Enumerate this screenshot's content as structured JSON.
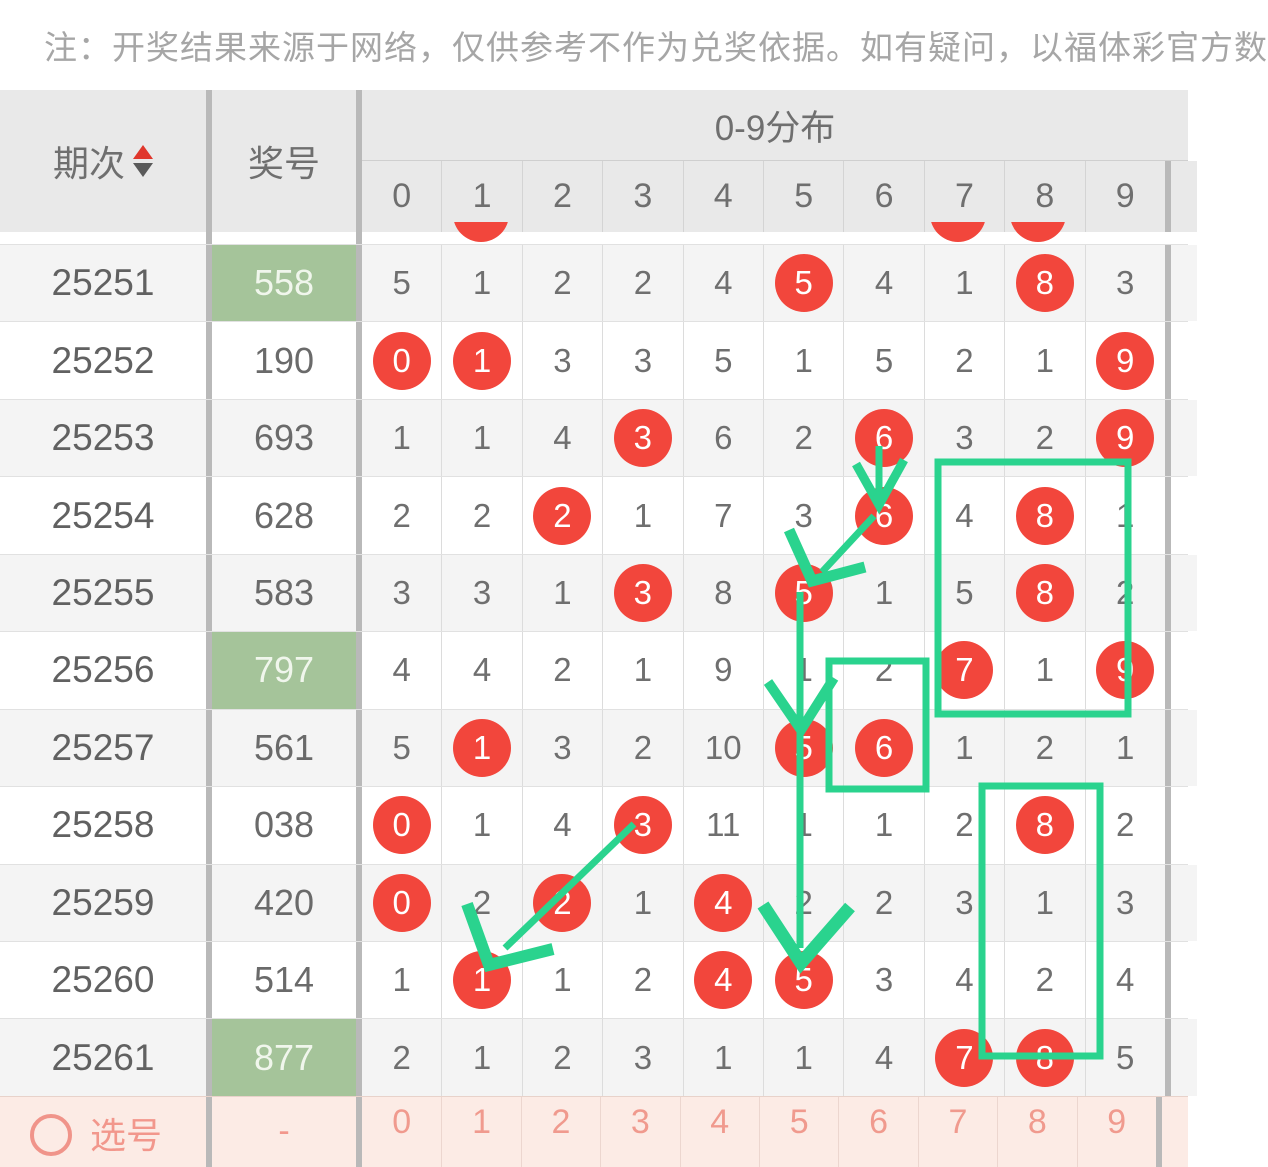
{
  "disclaimer": "注：开奖结果来源于网络，仅供参考不作为兑奖依据。如有疑问，以福体彩官方数",
  "header": {
    "period_label": "期次",
    "number_label": "奖号",
    "distribution_label": "0-9分布",
    "digits": [
      "0",
      "1",
      "2",
      "3",
      "4",
      "5",
      "6",
      "7",
      "8",
      "9"
    ]
  },
  "partial_top_row": {
    "circled_columns": [
      1,
      7,
      8
    ]
  },
  "rows": [
    {
      "period": "25251",
      "number": "558",
      "number_highlighted": true,
      "cells": [
        {
          "v": "5"
        },
        {
          "v": "1"
        },
        {
          "v": "2"
        },
        {
          "v": "2"
        },
        {
          "v": "4"
        },
        {
          "v": "5",
          "circled": true
        },
        {
          "v": "4"
        },
        {
          "v": "1"
        },
        {
          "v": "8",
          "circled": true
        },
        {
          "v": "3"
        }
      ]
    },
    {
      "period": "25252",
      "number": "190",
      "number_highlighted": false,
      "cells": [
        {
          "v": "0",
          "circled": true
        },
        {
          "v": "1",
          "circled": true
        },
        {
          "v": "3"
        },
        {
          "v": "3"
        },
        {
          "v": "5"
        },
        {
          "v": "1"
        },
        {
          "v": "5"
        },
        {
          "v": "2"
        },
        {
          "v": "1"
        },
        {
          "v": "9",
          "circled": true
        }
      ]
    },
    {
      "period": "25253",
      "number": "693",
      "number_highlighted": false,
      "cells": [
        {
          "v": "1"
        },
        {
          "v": "1"
        },
        {
          "v": "4"
        },
        {
          "v": "3",
          "circled": true
        },
        {
          "v": "6"
        },
        {
          "v": "2"
        },
        {
          "v": "6",
          "circled": true
        },
        {
          "v": "3"
        },
        {
          "v": "2"
        },
        {
          "v": "9",
          "circled": true
        }
      ]
    },
    {
      "period": "25254",
      "number": "628",
      "number_highlighted": false,
      "cells": [
        {
          "v": "2"
        },
        {
          "v": "2"
        },
        {
          "v": "2",
          "circled": true
        },
        {
          "v": "1"
        },
        {
          "v": "7"
        },
        {
          "v": "3"
        },
        {
          "v": "6",
          "circled": true
        },
        {
          "v": "4"
        },
        {
          "v": "8",
          "circled": true
        },
        {
          "v": "1"
        }
      ]
    },
    {
      "period": "25255",
      "number": "583",
      "number_highlighted": false,
      "cells": [
        {
          "v": "3"
        },
        {
          "v": "3"
        },
        {
          "v": "1"
        },
        {
          "v": "3",
          "circled": true
        },
        {
          "v": "8"
        },
        {
          "v": "5",
          "circled": true
        },
        {
          "v": "1"
        },
        {
          "v": "5"
        },
        {
          "v": "8",
          "circled": true
        },
        {
          "v": "2"
        }
      ]
    },
    {
      "period": "25256",
      "number": "797",
      "number_highlighted": true,
      "cells": [
        {
          "v": "4"
        },
        {
          "v": "4"
        },
        {
          "v": "2"
        },
        {
          "v": "1"
        },
        {
          "v": "9"
        },
        {
          "v": "1"
        },
        {
          "v": "2"
        },
        {
          "v": "7",
          "circled": true
        },
        {
          "v": "1"
        },
        {
          "v": "9",
          "circled": true
        }
      ]
    },
    {
      "period": "25257",
      "number": "561",
      "number_highlighted": false,
      "cells": [
        {
          "v": "5"
        },
        {
          "v": "1",
          "circled": true
        },
        {
          "v": "3"
        },
        {
          "v": "2"
        },
        {
          "v": "10"
        },
        {
          "v": "5",
          "circled": true
        },
        {
          "v": "6",
          "circled": true
        },
        {
          "v": "1"
        },
        {
          "v": "2"
        },
        {
          "v": "1"
        }
      ]
    },
    {
      "period": "25258",
      "number": "038",
      "number_highlighted": false,
      "cells": [
        {
          "v": "0",
          "circled": true
        },
        {
          "v": "1"
        },
        {
          "v": "4"
        },
        {
          "v": "3",
          "circled": true
        },
        {
          "v": "11"
        },
        {
          "v": "1"
        },
        {
          "v": "1"
        },
        {
          "v": "2"
        },
        {
          "v": "8",
          "circled": true
        },
        {
          "v": "2"
        }
      ]
    },
    {
      "period": "25259",
      "number": "420",
      "number_highlighted": false,
      "cells": [
        {
          "v": "0",
          "circled": true
        },
        {
          "v": "2"
        },
        {
          "v": "2",
          "circled": true
        },
        {
          "v": "1"
        },
        {
          "v": "4",
          "circled": true
        },
        {
          "v": "2"
        },
        {
          "v": "2"
        },
        {
          "v": "3"
        },
        {
          "v": "1"
        },
        {
          "v": "3"
        }
      ]
    },
    {
      "period": "25260",
      "number": "514",
      "number_highlighted": false,
      "cells": [
        {
          "v": "1"
        },
        {
          "v": "1",
          "circled": true
        },
        {
          "v": "1"
        },
        {
          "v": "2"
        },
        {
          "v": "4",
          "circled": true
        },
        {
          "v": "5",
          "circled": true
        },
        {
          "v": "3"
        },
        {
          "v": "4"
        },
        {
          "v": "2"
        },
        {
          "v": "4"
        }
      ]
    },
    {
      "period": "25261",
      "number": "877",
      "number_highlighted": true,
      "cells": [
        {
          "v": "2"
        },
        {
          "v": "1"
        },
        {
          "v": "2"
        },
        {
          "v": "3"
        },
        {
          "v": "1"
        },
        {
          "v": "1"
        },
        {
          "v": "4"
        },
        {
          "v": "7",
          "circled": true
        },
        {
          "v": "8",
          "circled": true
        },
        {
          "v": "5"
        }
      ]
    }
  ],
  "footer": {
    "select_label": "选号",
    "number": "-",
    "digits": [
      "0",
      "1",
      "2",
      "3",
      "4",
      "5",
      "6",
      "7",
      "8",
      "9"
    ]
  },
  "annotations": {
    "green_boxes": [
      "rows 25254-25256 cols 7-9",
      "row 25257 col 6",
      "rows 25258-25261 col 8"
    ],
    "green_arrows": [
      "6(25253)→6(25254)",
      "6(25254)→5(25255)",
      "5(25255)→5(25257)→5(25260)",
      "3(25258)→1(25260)"
    ]
  },
  "colors": {
    "circle_red": "#f2463c",
    "number_highlight_bg": "#a5c49a",
    "annotation_green": "#2ad38e",
    "footer_bg": "#fcebe5",
    "footer_text": "#f2978c",
    "header_bg": "#e9e9e9",
    "sort_up": "#e0372c",
    "sort_down": "#5a5a5a"
  }
}
